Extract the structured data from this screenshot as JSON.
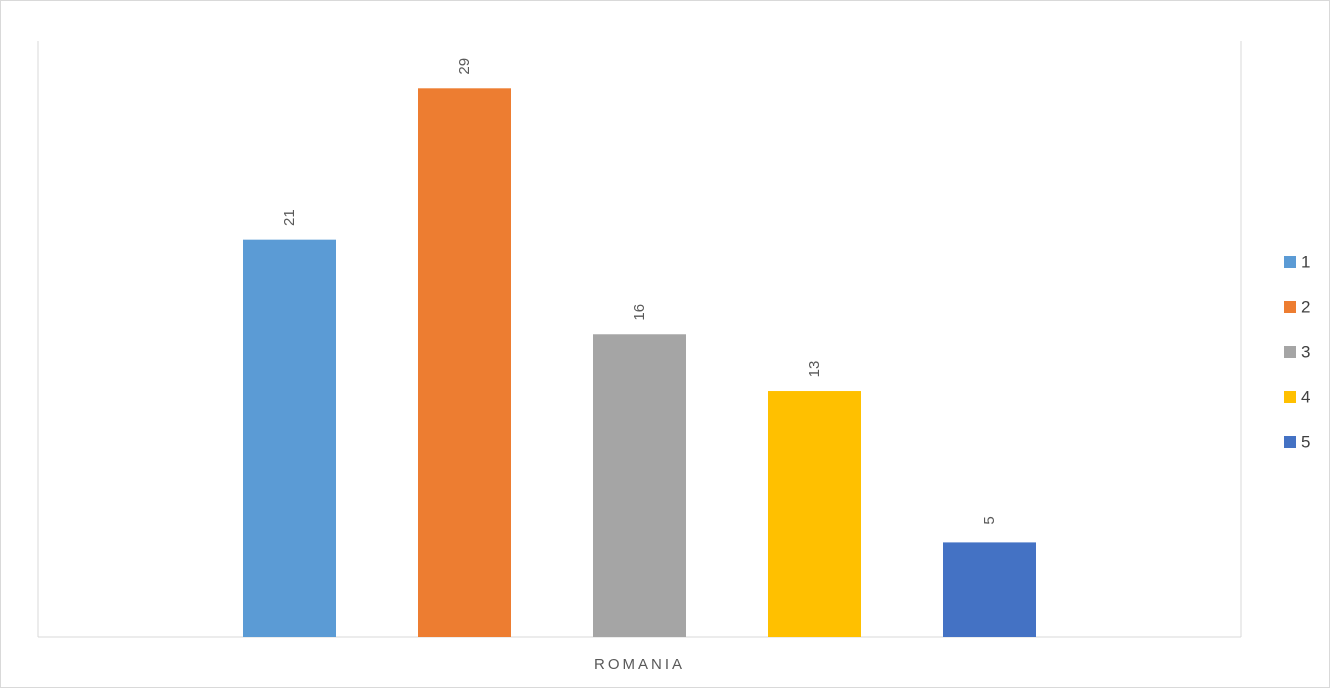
{
  "chart_data": {
    "type": "bar",
    "categories": [
      "ROMANIA"
    ],
    "series": [
      {
        "name": "1",
        "values": [
          21
        ],
        "color": "#5B9BD5"
      },
      {
        "name": "2",
        "values": [
          29
        ],
        "color": "#ED7D31"
      },
      {
        "name": "3",
        "values": [
          16
        ],
        "color": "#A5A5A5"
      },
      {
        "name": "4",
        "values": [
          13
        ],
        "color": "#FFC000"
      },
      {
        "name": "5",
        "values": [
          5
        ],
        "color": "#4472C4"
      }
    ],
    "title": "",
    "xlabel": "",
    "ylabel": "",
    "ylim": [
      0,
      31.5
    ],
    "grid": false,
    "data_labels": true,
    "data_label_rotation": "vertical",
    "legend_position": "right"
  }
}
